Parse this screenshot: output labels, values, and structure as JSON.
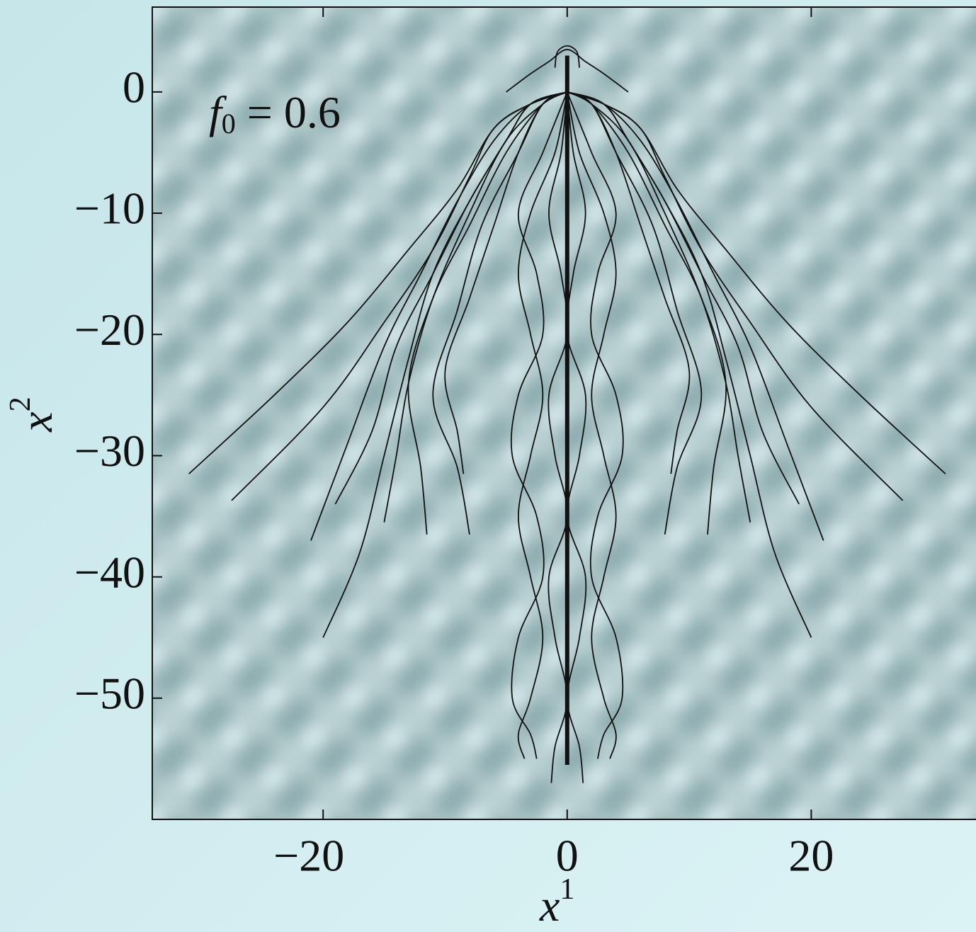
{
  "chart_data": {
    "type": "line",
    "annotation": {
      "base": "f",
      "sub": "0",
      "rest": " = 0.6"
    },
    "xlabel": {
      "base": "x",
      "sup": "1"
    },
    "ylabel": {
      "base": "x",
      "sup": "2"
    },
    "xlim": [
      -34,
      33.5
    ],
    "ylim": [
      -60,
      7
    ],
    "xticks": [
      {
        "value": -20,
        "label": "−20"
      },
      0,
      20
    ],
    "yticks": [
      0,
      {
        "value": -10,
        "label": "−10"
      },
      {
        "value": -20,
        "label": "−20"
      },
      {
        "value": -30,
        "label": "−30"
      },
      {
        "value": -40,
        "label": "−40"
      },
      {
        "value": -50,
        "label": "−50"
      }
    ],
    "color": "#111111",
    "series": [
      {
        "x": [
          0,
          -3,
          -6,
          -9,
          -13,
          -18,
          -24,
          -31
        ],
        "y": [
          0,
          -1,
          -3,
          -8,
          -13,
          -19,
          -25,
          -31.5
        ]
      },
      {
        "x": [
          0,
          3,
          6,
          9,
          13,
          18,
          24,
          31
        ],
        "y": [
          0,
          -1,
          -3,
          -8,
          -13,
          -19,
          -25,
          -31.5
        ]
      },
      {
        "x": [
          0,
          -3,
          -6,
          -8,
          -11,
          -15,
          -20,
          -27.5
        ],
        "y": [
          0,
          -1,
          -3,
          -7,
          -13,
          -19,
          -26,
          -33.7
        ]
      },
      {
        "x": [
          0,
          3,
          6,
          8,
          11,
          15,
          20,
          27.5
        ],
        "y": [
          0,
          -1,
          -3,
          -7,
          -13,
          -19,
          -26,
          -33.7
        ]
      },
      {
        "x": [
          0,
          -3,
          -6,
          -9,
          -12,
          -15,
          -18,
          -21
        ],
        "y": [
          0,
          -1,
          -4,
          -9,
          -15,
          -21,
          -29,
          -37
        ]
      },
      {
        "x": [
          0,
          3,
          6,
          9,
          12,
          15,
          18,
          21
        ],
        "y": [
          0,
          -1,
          -4,
          -9,
          -15,
          -21,
          -29,
          -37
        ]
      },
      {
        "x": [
          0,
          -3,
          -5,
          -8,
          -11,
          -13,
          -15,
          -17,
          -20
        ],
        "y": [
          0,
          -1,
          -4,
          -9,
          -15,
          -22,
          -30,
          -38,
          -45
        ]
      },
      {
        "x": [
          0,
          3,
          5,
          8,
          11,
          13,
          15,
          17,
          20
        ],
        "y": [
          0,
          -1,
          -4,
          -9,
          -15,
          -22,
          -30,
          -38,
          -45
        ]
      },
      {
        "x": [
          0,
          -3,
          -5,
          -8,
          -11,
          -14,
          -16,
          -19
        ],
        "y": [
          0,
          -1,
          -4,
          -9,
          -15,
          -21,
          -28,
          -34
        ]
      },
      {
        "x": [
          0,
          3,
          5,
          8,
          11,
          14,
          16,
          19
        ],
        "y": [
          0,
          -1,
          -4,
          -9,
          -15,
          -21,
          -28,
          -34
        ]
      },
      {
        "x": [
          0,
          -2,
          -5,
          -8,
          -11,
          -13,
          -14,
          -15
        ],
        "y": [
          0,
          -1,
          -4,
          -10,
          -17,
          -24,
          -30,
          -35.5
        ]
      },
      {
        "x": [
          0,
          2,
          5,
          8,
          11,
          13,
          14,
          15
        ],
        "y": [
          0,
          -1,
          -4,
          -10,
          -17,
          -24,
          -30,
          -35.5
        ]
      },
      {
        "x": [
          0,
          -2,
          -5,
          -8,
          -11,
          -13,
          -12,
          -11.5
        ],
        "y": [
          0,
          -1,
          -5,
          -11,
          -17,
          -24,
          -31,
          -36.5
        ]
      },
      {
        "x": [
          0,
          2,
          5,
          8,
          11,
          13,
          12,
          11.5
        ],
        "y": [
          0,
          -1,
          -5,
          -11,
          -17,
          -24,
          -31,
          -36.5
        ]
      },
      {
        "x": [
          0,
          -2,
          -4,
          -7,
          -9,
          -11,
          -9,
          -8
        ],
        "y": [
          0,
          -1,
          -5,
          -11,
          -18,
          -25,
          -31,
          -36.5
        ]
      },
      {
        "x": [
          0,
          2,
          4,
          7,
          9,
          11,
          9,
          8
        ],
        "y": [
          0,
          -1,
          -5,
          -11,
          -18,
          -25,
          -31,
          -36.5
        ]
      },
      {
        "x": [
          0,
          -2,
          -4,
          -6,
          -8,
          -10,
          -9,
          -8.5
        ],
        "y": [
          0,
          -1,
          -5,
          -11,
          -17,
          -23,
          -28,
          -31.5
        ]
      },
      {
        "x": [
          0,
          2,
          4,
          6,
          8,
          10,
          9,
          8.5
        ],
        "y": [
          0,
          -1,
          -5,
          -11,
          -17,
          -23,
          -28,
          -31.5
        ]
      },
      {
        "x": [
          0,
          -1,
          -3,
          -4,
          -3,
          -2,
          -3,
          -4,
          -3,
          -2,
          -3,
          -4,
          -3.5
        ],
        "y": [
          0,
          -5,
          -10,
          -15,
          -20,
          -25,
          -30,
          -35,
          -40,
          -45,
          -50,
          -53,
          -55
        ]
      },
      {
        "x": [
          0,
          1,
          3,
          4,
          3,
          2,
          3,
          4,
          3,
          2,
          3,
          4,
          3.5
        ],
        "y": [
          0,
          -5,
          -10,
          -15,
          -20,
          -25,
          -30,
          -35,
          -40,
          -45,
          -50,
          -53,
          -55
        ]
      },
      {
        "x": [
          0,
          -2,
          -4,
          -2.5,
          -2,
          -4,
          -4.5,
          -2.5,
          -2,
          -4,
          -4.5,
          -3,
          -2.5
        ],
        "y": [
          0,
          -5,
          -10,
          -15,
          -20,
          -25,
          -30,
          -35,
          -40,
          -45,
          -50,
          -53,
          -55
        ]
      },
      {
        "x": [
          0,
          2,
          4,
          2.5,
          2,
          4,
          4.5,
          2.5,
          2,
          4,
          4.5,
          3,
          2.5
        ],
        "y": [
          0,
          -5,
          -10,
          -15,
          -20,
          -25,
          -30,
          -35,
          -40,
          -45,
          -50,
          -53,
          -55
        ]
      },
      {
        "x": [
          0,
          -0.5,
          -1.5,
          -0.5,
          0,
          -1.5,
          -1,
          0,
          -1.5,
          -1,
          0,
          -1,
          -1.3
        ],
        "y": [
          0,
          -5,
          -10,
          -15,
          -20,
          -25,
          -30,
          -35,
          -40,
          -45,
          -50,
          -54,
          -57
        ]
      },
      {
        "x": [
          0,
          0.5,
          1.5,
          0.5,
          0,
          1.5,
          1,
          0,
          1.5,
          1,
          0,
          1,
          1.3
        ],
        "y": [
          0,
          -5,
          -10,
          -15,
          -20,
          -25,
          -30,
          -35,
          -40,
          -45,
          -50,
          -54,
          -57
        ]
      },
      {
        "x": [
          -5,
          -3,
          -1.5,
          0,
          1.5,
          3,
          5
        ],
        "y": [
          0,
          1.5,
          2.5,
          3.5,
          2.5,
          1.5,
          0
        ]
      },
      {
        "x": [
          -1,
          -0.8,
          0,
          0.8,
          1
        ],
        "y": [
          2,
          3.3,
          3.8,
          3.3,
          2
        ]
      }
    ],
    "spine": {
      "x": [
        0,
        0,
        0,
        0
      ],
      "y": [
        3,
        -10,
        -40,
        -55.5
      ]
    }
  }
}
